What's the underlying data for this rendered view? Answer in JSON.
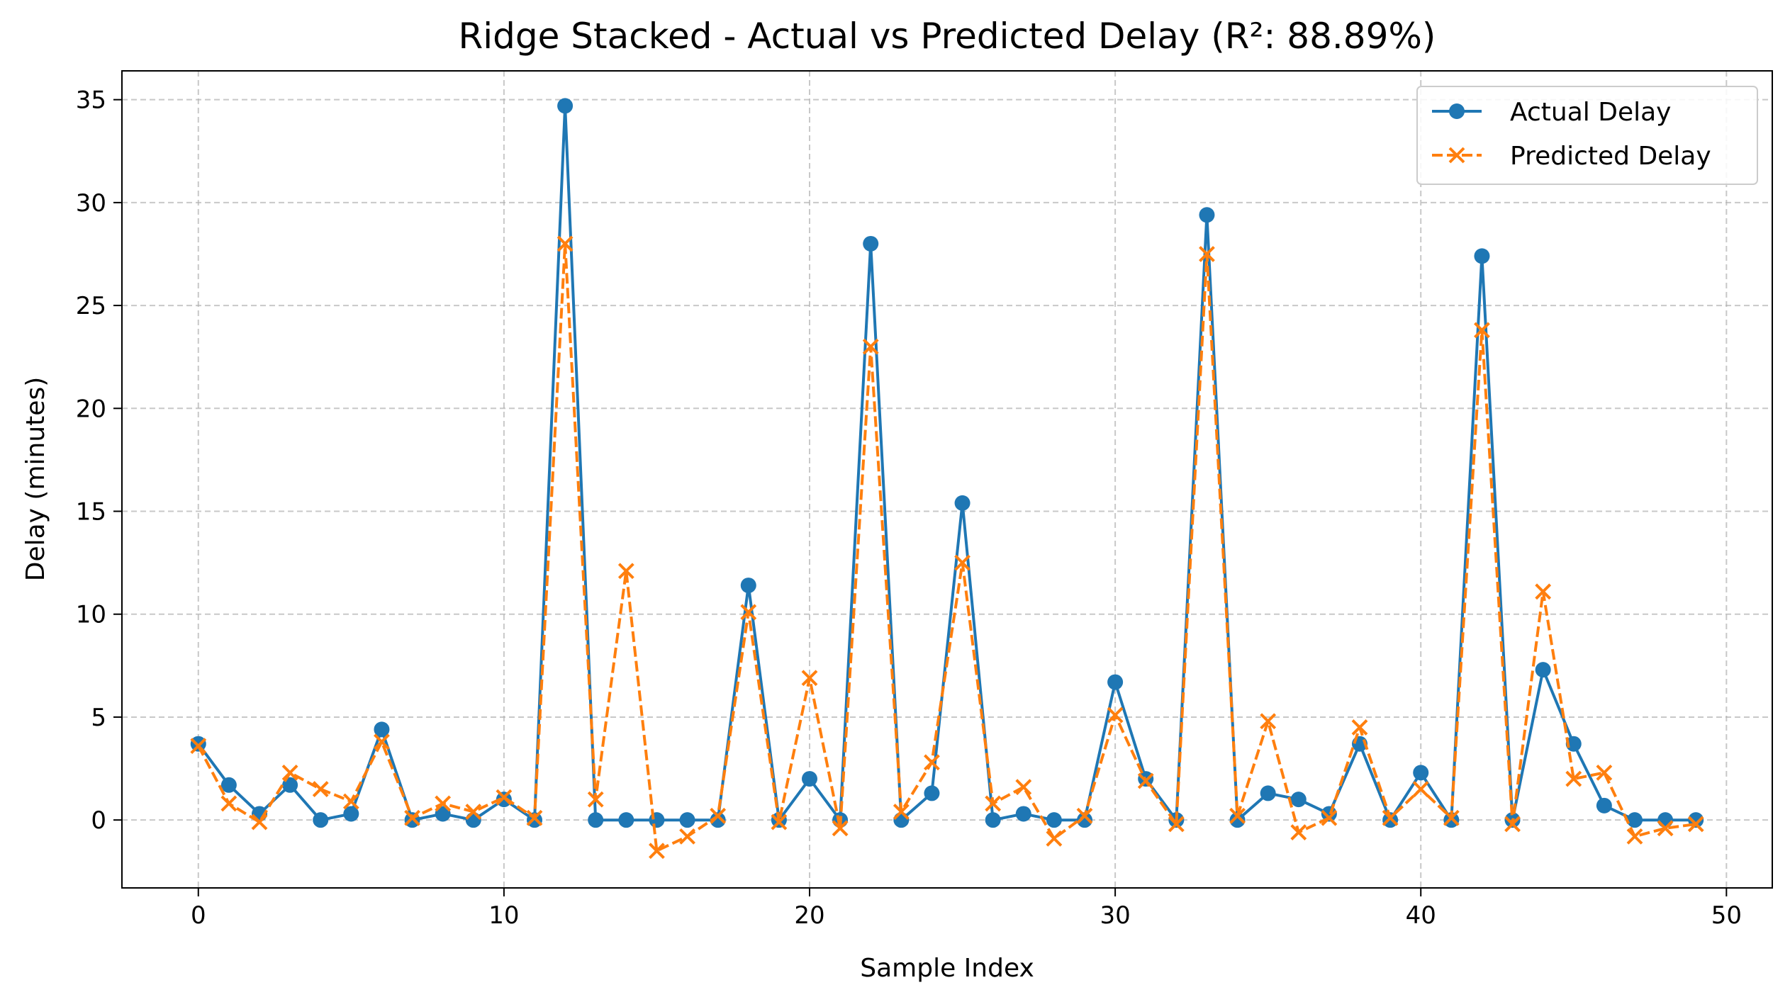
{
  "chart_data": {
    "type": "line",
    "title": "Ridge Stacked - Actual vs Predicted Delay (R²: 88.89%)",
    "xlabel": "Sample Index",
    "ylabel": "Delay (minutes)",
    "xlim": [
      -2.5,
      51.5
    ],
    "ylim": [
      -3.3,
      36.4
    ],
    "xticks": [
      0,
      10,
      20,
      30,
      40,
      50
    ],
    "yticks": [
      0,
      5,
      10,
      15,
      20,
      25,
      30,
      35
    ],
    "grid": true,
    "legend": "top-right",
    "x": [
      0,
      1,
      2,
      3,
      4,
      5,
      6,
      7,
      8,
      9,
      10,
      11,
      12,
      13,
      14,
      15,
      16,
      17,
      18,
      19,
      20,
      21,
      22,
      23,
      24,
      25,
      26,
      27,
      28,
      29,
      30,
      31,
      32,
      33,
      34,
      35,
      36,
      37,
      38,
      39,
      40,
      41,
      42,
      43,
      44,
      45,
      46,
      47,
      48,
      49
    ],
    "series": [
      {
        "name": "Actual Delay",
        "color": "#1f77b4",
        "line_style": "solid",
        "marker": "circle",
        "values": [
          3.7,
          1.7,
          0.3,
          1.7,
          0,
          0.3,
          4.4,
          0,
          0.3,
          0,
          1.0,
          0,
          34.7,
          0,
          0,
          0,
          0,
          0,
          11.4,
          0,
          2.0,
          0,
          28.0,
          0,
          1.3,
          15.4,
          0,
          0.3,
          0,
          0,
          6.7,
          2.0,
          0,
          29.4,
          0,
          1.3,
          1.0,
          0.3,
          3.7,
          0,
          2.3,
          0,
          27.4,
          0,
          7.3,
          3.7,
          0.7,
          0,
          0,
          0
        ]
      },
      {
        "name": "Predicted Delay",
        "color": "#ff7f0e",
        "line_style": "dashed",
        "marker": "x",
        "values": [
          3.6,
          0.8,
          -0.1,
          2.3,
          1.5,
          0.9,
          3.8,
          0.1,
          0.8,
          0.4,
          1.1,
          0.1,
          28.0,
          1.0,
          12.1,
          -1.5,
          -0.8,
          0.2,
          10.1,
          -0.1,
          6.9,
          -0.4,
          23.0,
          0.4,
          2.8,
          12.5,
          0.8,
          1.6,
          -0.9,
          0.2,
          5.1,
          1.9,
          -0.2,
          27.5,
          0.2,
          4.8,
          -0.6,
          0.1,
          4.5,
          0.1,
          1.5,
          0.1,
          23.8,
          -0.2,
          11.1,
          2.0,
          2.3,
          -0.8,
          -0.4,
          -0.2
        ]
      }
    ]
  }
}
